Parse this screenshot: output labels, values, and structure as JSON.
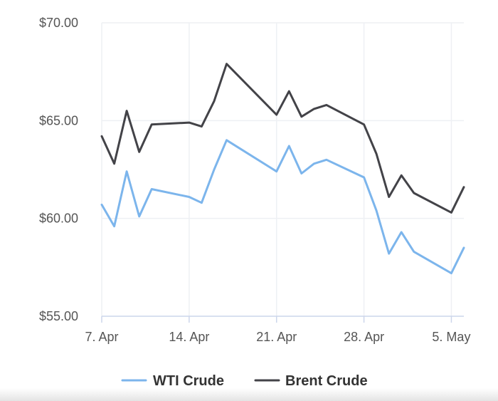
{
  "chart_data": {
    "type": "line",
    "x": [
      "7 Apr",
      "8 Apr",
      "9 Apr",
      "10 Apr",
      "11 Apr",
      "14 Apr",
      "15 Apr",
      "16 Apr",
      "17 Apr",
      "21 Apr",
      "22 Apr",
      "23 Apr",
      "24 Apr",
      "25 Apr",
      "28 Apr",
      "29 Apr",
      "30 Apr",
      "1 May",
      "2 May",
      "5 May",
      "6 May"
    ],
    "x_days": [
      0,
      1,
      2,
      3,
      4,
      7,
      8,
      9,
      10,
      14,
      15,
      16,
      17,
      18,
      21,
      22,
      23,
      24,
      25,
      28,
      29
    ],
    "series": [
      {
        "name": "WTI Crude",
        "color": "#7cb5ec",
        "values": [
          60.7,
          59.6,
          62.4,
          60.1,
          61.5,
          61.1,
          60.8,
          62.5,
          64.0,
          62.4,
          63.7,
          62.3,
          62.8,
          63.0,
          62.1,
          60.4,
          58.2,
          59.3,
          58.3,
          57.2,
          58.5
        ]
      },
      {
        "name": "Brent Crude",
        "color": "#434348",
        "values": [
          64.2,
          62.8,
          65.5,
          63.4,
          64.8,
          64.9,
          64.7,
          66.0,
          67.9,
          65.3,
          66.5,
          65.2,
          65.6,
          65.8,
          64.8,
          63.3,
          61.1,
          62.2,
          61.3,
          60.3,
          61.6
        ]
      }
    ],
    "y_ticks": [
      "$70.00",
      "$65.00",
      "$60.00",
      "$55.00"
    ],
    "x_ticks": [
      "7. Apr",
      "14. Apr",
      "21. Apr",
      "28. Apr",
      "5. May"
    ],
    "ylim": [
      55,
      70
    ],
    "grid": true,
    "legend": "bottom-center"
  }
}
